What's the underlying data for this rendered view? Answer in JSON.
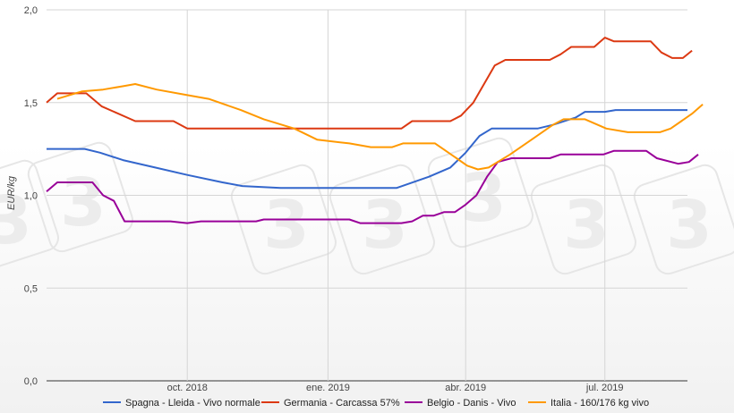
{
  "chart_data": {
    "type": "line",
    "ylabel": "EUR/kg",
    "ylim": [
      0,
      2
    ],
    "yticks": [
      "0,0",
      "0,5",
      "1,0",
      "1,5",
      "2,0"
    ],
    "ytick_values": [
      0,
      0.5,
      1.0,
      1.5,
      2.0
    ],
    "xlim": [
      "2018-07-01",
      "2019-08-24"
    ],
    "xticks": [
      {
        "label": "oct. 2018",
        "date": "2018-10-01"
      },
      {
        "label": "ene. 2019",
        "date": "2019-01-01"
      },
      {
        "label": "abr. 2019",
        "date": "2019-04-01"
      },
      {
        "label": "jul. 2019",
        "date": "2019-07-01"
      }
    ],
    "grid": true,
    "legend_position": "bottom",
    "series": [
      {
        "name": "Spagna - Lleida - Vivo normale",
        "color": "#3366cc",
        "points": [
          [
            "2018-07-01",
            1.25
          ],
          [
            "2018-07-26",
            1.25
          ],
          [
            "2018-08-05",
            1.23
          ],
          [
            "2018-08-20",
            1.19
          ],
          [
            "2018-09-10",
            1.15
          ],
          [
            "2018-10-01",
            1.11
          ],
          [
            "2018-10-24",
            1.07
          ],
          [
            "2018-11-06",
            1.05
          ],
          [
            "2018-12-01",
            1.04
          ],
          [
            "2019-01-01",
            1.04
          ],
          [
            "2019-02-01",
            1.04
          ],
          [
            "2019-02-15",
            1.04
          ],
          [
            "2019-03-08",
            1.1
          ],
          [
            "2019-03-22",
            1.15
          ],
          [
            "2019-04-01",
            1.23
          ],
          [
            "2019-04-10",
            1.32
          ],
          [
            "2019-04-18",
            1.36
          ],
          [
            "2019-05-01",
            1.36
          ],
          [
            "2019-05-18",
            1.36
          ],
          [
            "2019-05-28",
            1.38
          ],
          [
            "2019-06-12",
            1.42
          ],
          [
            "2019-06-18",
            1.45
          ],
          [
            "2019-07-01",
            1.45
          ],
          [
            "2019-07-08",
            1.46
          ],
          [
            "2019-08-24",
            1.46
          ]
        ]
      },
      {
        "name": "Germania - Carcassa 57%",
        "color": "#dc3912",
        "points": [
          [
            "2018-07-01",
            1.5
          ],
          [
            "2018-07-08",
            1.55
          ],
          [
            "2018-07-27",
            1.55
          ],
          [
            "2018-08-06",
            1.48
          ],
          [
            "2018-08-28",
            1.4
          ],
          [
            "2018-09-22",
            1.4
          ],
          [
            "2018-10-01",
            1.36
          ],
          [
            "2018-11-15",
            1.36
          ],
          [
            "2019-01-01",
            1.36
          ],
          [
            "2019-02-18",
            1.36
          ],
          [
            "2019-02-25",
            1.4
          ],
          [
            "2019-03-22",
            1.4
          ],
          [
            "2019-03-29",
            1.43
          ],
          [
            "2019-04-06",
            1.5
          ],
          [
            "2019-04-20",
            1.7
          ],
          [
            "2019-04-27",
            1.73
          ],
          [
            "2019-05-26",
            1.73
          ],
          [
            "2019-06-02",
            1.76
          ],
          [
            "2019-06-09",
            1.8
          ],
          [
            "2019-06-24",
            1.8
          ],
          [
            "2019-07-01",
            1.85
          ],
          [
            "2019-07-07",
            1.83
          ],
          [
            "2019-07-31",
            1.83
          ],
          [
            "2019-08-07",
            1.77
          ],
          [
            "2019-08-14",
            1.74
          ],
          [
            "2019-08-21",
            1.74
          ],
          [
            "2019-08-27",
            1.78
          ]
        ]
      },
      {
        "name": "Belgio - Danis - Vivo",
        "color": "#990099",
        "points": [
          [
            "2018-07-01",
            1.02
          ],
          [
            "2018-07-08",
            1.07
          ],
          [
            "2018-07-31",
            1.07
          ],
          [
            "2018-08-07",
            1.0
          ],
          [
            "2018-08-14",
            0.97
          ],
          [
            "2018-08-21",
            0.86
          ],
          [
            "2018-09-20",
            0.86
          ],
          [
            "2018-10-01",
            0.85
          ],
          [
            "2018-10-10",
            0.86
          ],
          [
            "2018-11-15",
            0.86
          ],
          [
            "2018-11-20",
            0.87
          ],
          [
            "2018-12-20",
            0.87
          ],
          [
            "2019-01-15",
            0.87
          ],
          [
            "2019-01-22",
            0.85
          ],
          [
            "2019-02-18",
            0.85
          ],
          [
            "2019-02-25",
            0.86
          ],
          [
            "2019-03-04",
            0.89
          ],
          [
            "2019-03-11",
            0.89
          ],
          [
            "2019-03-18",
            0.91
          ],
          [
            "2019-03-25",
            0.91
          ],
          [
            "2019-04-01",
            0.95
          ],
          [
            "2019-04-08",
            1.0
          ],
          [
            "2019-04-15",
            1.1
          ],
          [
            "2019-04-22",
            1.18
          ],
          [
            "2019-05-01",
            1.2
          ],
          [
            "2019-05-26",
            1.2
          ],
          [
            "2019-06-02",
            1.22
          ],
          [
            "2019-06-30",
            1.22
          ],
          [
            "2019-07-07",
            1.24
          ],
          [
            "2019-07-28",
            1.24
          ],
          [
            "2019-08-04",
            1.2
          ],
          [
            "2019-08-18",
            1.17
          ],
          [
            "2019-08-25",
            1.18
          ],
          [
            "2019-08-31",
            1.22
          ]
        ]
      },
      {
        "name": "Italia - 160/176 kg vivo",
        "color": "#ff9900",
        "points": [
          [
            "2018-07-08",
            1.52
          ],
          [
            "2018-07-24",
            1.56
          ],
          [
            "2018-08-07",
            1.57
          ],
          [
            "2018-08-21",
            1.59
          ],
          [
            "2018-08-28",
            1.6
          ],
          [
            "2018-09-11",
            1.57
          ],
          [
            "2018-10-01",
            1.54
          ],
          [
            "2018-10-15",
            1.52
          ],
          [
            "2018-11-05",
            1.46
          ],
          [
            "2018-11-20",
            1.41
          ],
          [
            "2018-12-10",
            1.36
          ],
          [
            "2018-12-25",
            1.3
          ],
          [
            "2019-01-15",
            1.28
          ],
          [
            "2019-01-29",
            1.26
          ],
          [
            "2019-02-12",
            1.26
          ],
          [
            "2019-02-19",
            1.28
          ],
          [
            "2019-03-05",
            1.28
          ],
          [
            "2019-03-12",
            1.28
          ],
          [
            "2019-03-19",
            1.24
          ],
          [
            "2019-03-26",
            1.2
          ],
          [
            "2019-04-02",
            1.16
          ],
          [
            "2019-04-09",
            1.14
          ],
          [
            "2019-04-16",
            1.15
          ],
          [
            "2019-04-30",
            1.22
          ],
          [
            "2019-05-14",
            1.3
          ],
          [
            "2019-05-28",
            1.38
          ],
          [
            "2019-06-04",
            1.41
          ],
          [
            "2019-06-18",
            1.41
          ],
          [
            "2019-07-02",
            1.36
          ],
          [
            "2019-07-16",
            1.34
          ],
          [
            "2019-08-06",
            1.34
          ],
          [
            "2019-08-13",
            1.36
          ],
          [
            "2019-08-20",
            1.4
          ],
          [
            "2019-08-27",
            1.44
          ],
          [
            "2019-09-03",
            1.49
          ]
        ]
      }
    ]
  }
}
